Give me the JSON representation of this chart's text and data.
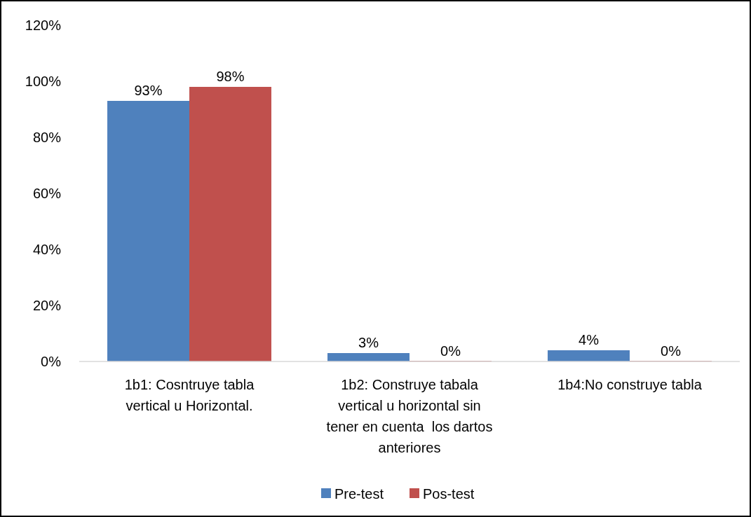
{
  "chart_data": {
    "type": "bar",
    "categories": [
      "1b1: Cosntruye tabla vertical u Horizontal.",
      "1b2: Construye tabala vertical u horizontal sin tener en cuenta  los dartos anteriores",
      "1b4:No construye tabla"
    ],
    "series": [
      {
        "name": "Pre-test",
        "color": "#4f81bd",
        "values": [
          93,
          3,
          4
        ],
        "value_labels": [
          "93%",
          "3%",
          "4%"
        ]
      },
      {
        "name": "Pos-test",
        "color": "#c0504d",
        "values": [
          98,
          0,
          0
        ],
        "value_labels": [
          "98%",
          "0%",
          "0%"
        ]
      }
    ],
    "ylim": [
      0,
      120
    ],
    "yticks": [
      {
        "value": 0,
        "label": "0%"
      },
      {
        "value": 20,
        "label": "20%"
      },
      {
        "value": 40,
        "label": "40%"
      },
      {
        "value": 60,
        "label": "60%"
      },
      {
        "value": 80,
        "label": "80%"
      },
      {
        "value": 100,
        "label": "100%"
      },
      {
        "value": 120,
        "label": "120%"
      }
    ],
    "legend": "bottom"
  }
}
